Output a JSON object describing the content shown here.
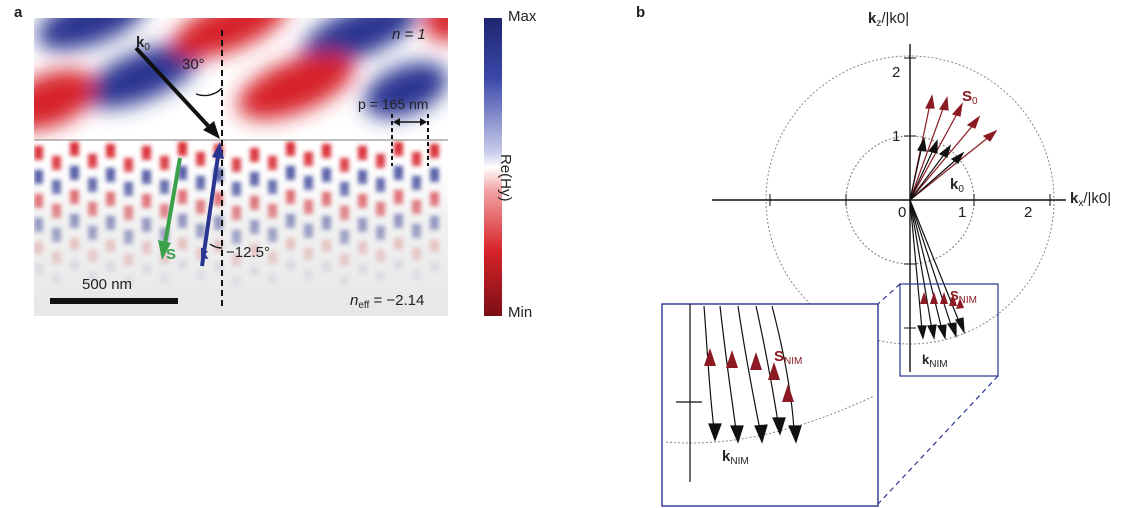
{
  "panel_a": {
    "letter": "a",
    "medium_top": "n = 1",
    "period": "p = 165 nm",
    "angle_incident": "30°",
    "angle_refracted": "−12.5°",
    "k0_main": "k",
    "k0_sub": "0",
    "s_label": "S",
    "k_label": "k",
    "scalebar_label": "500 nm",
    "neff_main": "n",
    "neff_sub": "eff",
    "neff_value": " = −2.14",
    "colorbar_max": "Max",
    "colorbar_min": "Min",
    "colorbar_title": "Re(Hy)"
  },
  "panel_b": {
    "letter": "b",
    "axis_z_num": "k",
    "axis_z_sub": "z",
    "axis_z_den": "/|k0|",
    "axis_x_num": "k",
    "axis_x_sub": "x",
    "axis_x_den": "/|k0|",
    "tick_x": [
      "0",
      "1",
      "2"
    ],
    "tick_z": [
      "1",
      "2"
    ],
    "s0_main": "S",
    "s0_sub": "0",
    "k0_main": "k",
    "k0_sub": "0",
    "snim_main": "S",
    "snim_sub": "NIM",
    "knim_main": "k",
    "knim_sub": "NIM"
  },
  "colors": {
    "field_red": "#d7232a",
    "field_blue": "#2a3591",
    "s_arrow": "#3aa04a",
    "k_arrow": "#2a3591",
    "s_vectors": "#8b1a22",
    "k_vectors": "#111111",
    "inset_frame": "#2a3591"
  }
}
